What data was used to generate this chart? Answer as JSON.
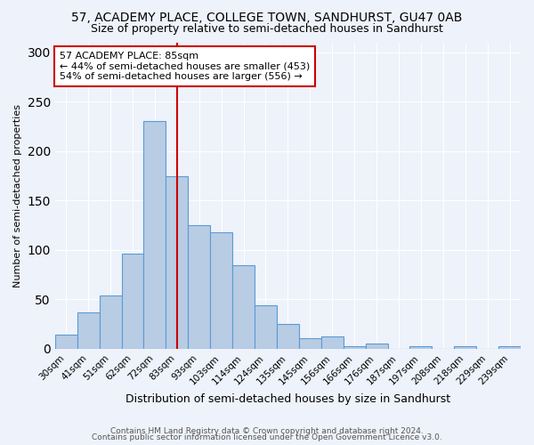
{
  "title": "57, ACADEMY PLACE, COLLEGE TOWN, SANDHURST, GU47 0AB",
  "subtitle": "Size of property relative to semi-detached houses in Sandhurst",
  "xlabel": "Distribution of semi-detached houses by size in Sandhurst",
  "ylabel": "Number of semi-detached properties",
  "categories": [
    "30sqm",
    "41sqm",
    "51sqm",
    "62sqm",
    "72sqm",
    "83sqm",
    "93sqm",
    "103sqm",
    "114sqm",
    "124sqm",
    "135sqm",
    "145sqm",
    "156sqm",
    "166sqm",
    "176sqm",
    "187sqm",
    "197sqm",
    "208sqm",
    "218sqm",
    "229sqm",
    "239sqm"
  ],
  "values": [
    14,
    37,
    54,
    96,
    230,
    175,
    125,
    118,
    85,
    44,
    25,
    11,
    13,
    3,
    5,
    0,
    3,
    0,
    3,
    0,
    3
  ],
  "bar_color": "#b8cce4",
  "bar_edge_color": "#5b9bd5",
  "property_line_color": "#cc0000",
  "annotation_title": "57 ACADEMY PLACE: 85sqm",
  "annotation_line1": "← 44% of semi-detached houses are smaller (453)",
  "annotation_line2": "54% of semi-detached houses are larger (556) →",
  "annotation_box_color": "#ffffff",
  "annotation_box_edge_color": "#cc0000",
  "footer1": "Contains HM Land Registry data © Crown copyright and database right 2024.",
  "footer2": "Contains public sector information licensed under the Open Government Licence v3.0.",
  "background_color": "#eef2fa",
  "ylim": [
    0,
    310
  ],
  "title_fontsize": 10,
  "subtitle_fontsize": 9,
  "xlabel_fontsize": 9,
  "ylabel_fontsize": 8,
  "tick_fontsize": 7.5,
  "annotation_fontsize": 8
}
